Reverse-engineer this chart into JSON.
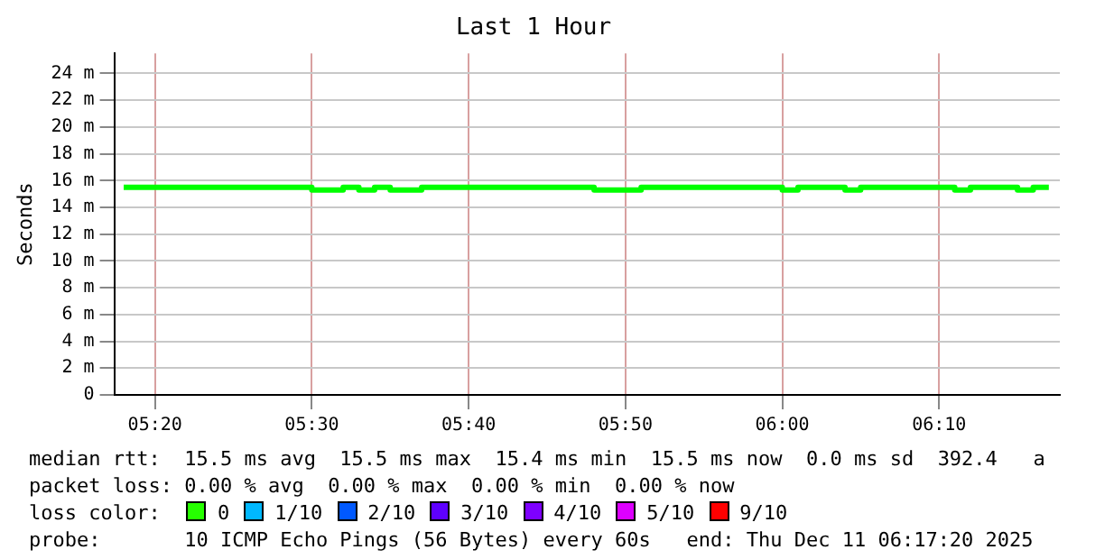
{
  "chart_data": {
    "type": "step",
    "title": "Last 1 Hour",
    "ylabel": "Seconds",
    "x": [
      5.3,
      5.5,
      5.5333,
      5.55,
      5.5667,
      5.5833,
      5.6167,
      5.8,
      5.85,
      6.0,
      6.0167,
      6.0667,
      6.0833,
      6.1833,
      6.2,
      6.25,
      6.2667,
      6.2833
    ],
    "series": [
      {
        "color": "#00ff00",
        "values": [
          15.5,
          15.3,
          15.5,
          15.3,
          15.5,
          15.3,
          15.5,
          15.3,
          15.5,
          15.3,
          15.5,
          15.3,
          15.5,
          15.3,
          15.5,
          15.3,
          15.5,
          15.5
        ]
      }
    ],
    "xlim": [
      5.29,
      6.295
    ],
    "xticks": [
      {
        "value": 5.3333,
        "label": "05:20"
      },
      {
        "value": 5.5,
        "label": "05:30"
      },
      {
        "value": 5.6667,
        "label": "05:40"
      },
      {
        "value": 5.8333,
        "label": "05:50"
      },
      {
        "value": 6.0,
        "label": "06:00"
      },
      {
        "value": 6.1667,
        "label": "06:10"
      }
    ],
    "ylim": [
      0,
      25.5
    ],
    "yticks": [
      0,
      {
        "value": 2,
        "label": "2 m"
      },
      {
        "value": 4,
        "label": "4 m"
      },
      {
        "value": 6,
        "label": "6 m"
      },
      {
        "value": 8,
        "label": "8 m"
      },
      {
        "value": 10,
        "label": "10 m"
      },
      {
        "value": 12,
        "label": "12 m"
      },
      {
        "value": 14,
        "label": "14 m"
      },
      {
        "value": 16,
        "label": "16 m"
      },
      {
        "value": 18,
        "label": "18 m"
      },
      {
        "value": 20,
        "label": "20 m"
      },
      {
        "value": 22,
        "label": "22 m"
      },
      {
        "value": 24,
        "label": "24 m"
      }
    ],
    "grid": true,
    "legend": false,
    "marker": "none",
    "line_style": "solid",
    "annotations": [
      "median rtt:  15.5 ms avg  15.5 ms max  15.4 ms min  15.5 ms now  0.0 ms sd  392.4   a",
      "packet loss: 0.00 % avg  0.00 % max  0.00 % min  0.00 % now",
      "loss color:",
      "0",
      "1/10",
      "2/10",
      "3/10",
      "4/10",
      "5/10",
      "9/10",
      "probe:       10 ICMP Echo Pings (56 Bytes) every 60s   end: Thu Dec 11 06:17:20 2025"
    ]
  }
}
